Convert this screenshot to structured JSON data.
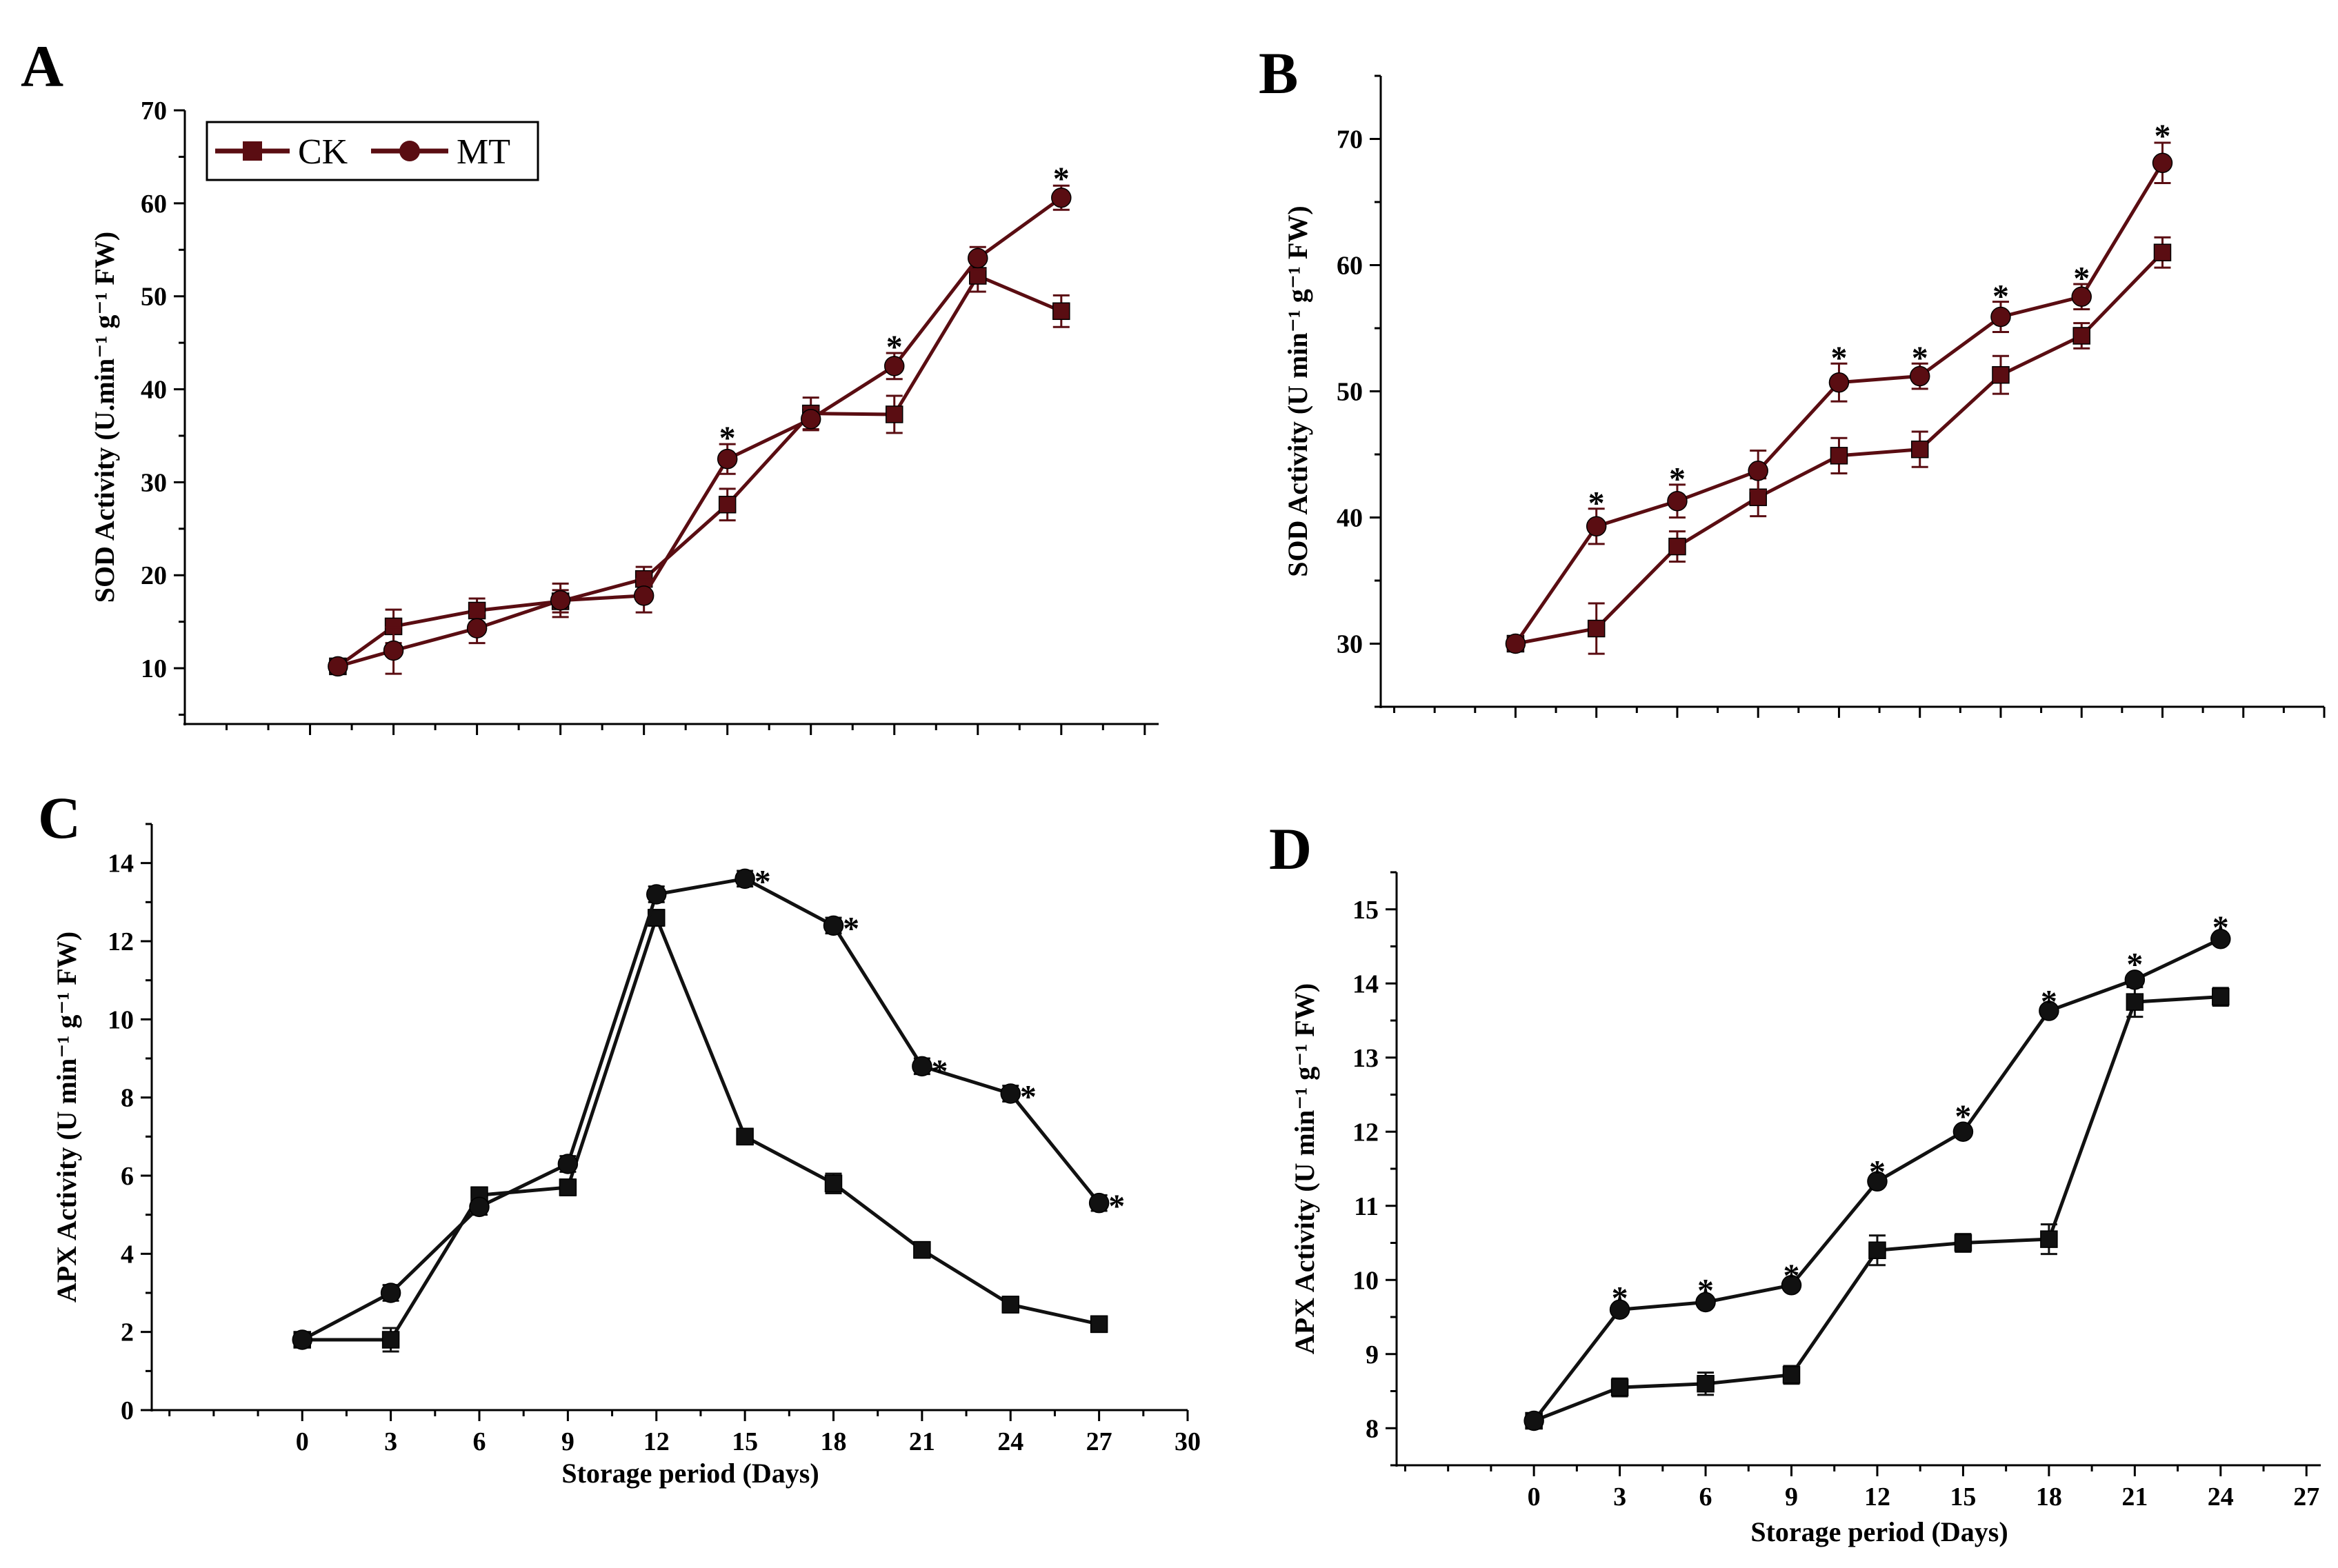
{
  "chart_data": [
    {
      "id": "A",
      "letter": "A",
      "type": "line",
      "title": "",
      "xlabel": "",
      "ylabel": "SOD Activity (U.min⁻¹ g⁻¹ FW)",
      "ylim": [
        4,
        70
      ],
      "yticks": [
        10,
        20,
        30,
        40,
        50,
        60,
        70
      ],
      "xlim": [
        -4.5,
        30.5
      ],
      "xticks": [
        0,
        3,
        6,
        9,
        12,
        15,
        18,
        21,
        24,
        27,
        30
      ],
      "xtick_labels_shown": false,
      "x": [
        1,
        3,
        6,
        9,
        12,
        15,
        18,
        21,
        24,
        27
      ],
      "legend": {
        "position": "top-left",
        "entries": [
          "CK",
          "MT"
        ]
      },
      "colors": {
        "CK": "#5a0d12",
        "MT": "#5a0d12"
      },
      "series": [
        {
          "name": "CK",
          "marker": "square",
          "values": [
            10.2,
            14.5,
            16.2,
            17.2,
            19.6,
            27.6,
            37.4,
            37.3,
            52.2,
            48.4
          ],
          "errors": [
            0.4,
            1.8,
            1.3,
            1.2,
            1.3,
            1.7,
            1.7,
            2.0,
            1.7,
            1.7
          ]
        },
        {
          "name": "MT",
          "marker": "circle",
          "values": [
            10.2,
            11.9,
            14.3,
            17.3,
            17.8,
            32.5,
            36.8,
            42.5,
            54.1,
            60.6
          ],
          "errors": [
            0.4,
            2.5,
            1.6,
            1.8,
            1.8,
            1.6,
            1.2,
            1.4,
            1.2,
            1.3
          ]
        }
      ],
      "annotations": [
        {
          "x": 15,
          "y": 35.5,
          "text": "*"
        },
        {
          "x": 21,
          "y": 45.3,
          "text": "*"
        },
        {
          "x": 27,
          "y": 63.4,
          "text": "*"
        }
      ]
    },
    {
      "id": "B",
      "letter": "B",
      "type": "line",
      "title": "",
      "xlabel": "",
      "ylabel": "SOD Activity (U min⁻¹ g⁻¹ FW)",
      "ylim": [
        25,
        75
      ],
      "yticks": [
        30,
        40,
        50,
        60,
        70
      ],
      "xlim": [
        -5,
        30
      ],
      "xticks": [
        0,
        3,
        6,
        9,
        12,
        15,
        18,
        21,
        24,
        27,
        30
      ],
      "xtick_labels_shown": false,
      "x": [
        0,
        3,
        6,
        9,
        12,
        15,
        18,
        21,
        24
      ],
      "legend": null,
      "colors": {
        "CK": "#5a0d12",
        "MT": "#5a0d12"
      },
      "series": [
        {
          "name": "CK",
          "marker": "square",
          "values": [
            30.0,
            31.2,
            37.7,
            41.6,
            44.9,
            45.4,
            51.3,
            54.4,
            61.0
          ],
          "errors": [
            0.5,
            2.0,
            1.2,
            1.5,
            1.4,
            1.4,
            1.5,
            1.0,
            1.2
          ]
        },
        {
          "name": "MT",
          "marker": "circle",
          "values": [
            30.0,
            39.3,
            41.3,
            43.7,
            50.7,
            51.2,
            55.9,
            57.5,
            68.1
          ],
          "errors": [
            0.5,
            1.4,
            1.3,
            1.6,
            1.5,
            1.0,
            1.2,
            1.0,
            1.6
          ]
        }
      ],
      "annotations": [
        {
          "x": 3,
          "y": 41.7,
          "text": "*"
        },
        {
          "x": 6,
          "y": 43.6,
          "text": "*"
        },
        {
          "x": 12,
          "y": 53.2,
          "text": "*"
        },
        {
          "x": 15,
          "y": 53.2,
          "text": "*"
        },
        {
          "x": 18,
          "y": 58.1,
          "text": "*"
        },
        {
          "x": 21,
          "y": 59.5,
          "text": "*"
        },
        {
          "x": 24,
          "y": 70.8,
          "text": "*"
        }
      ]
    },
    {
      "id": "C",
      "letter": "C",
      "type": "line",
      "title": "",
      "xlabel": "Storage period (Days)",
      "ylabel": "APX Activity (U min⁻¹ g⁻¹ FW)",
      "ylim": [
        0,
        15
      ],
      "yticks": [
        0,
        2,
        4,
        6,
        8,
        10,
        12,
        14
      ],
      "xlim": [
        -5.1,
        30
      ],
      "xticks": [
        0,
        3,
        6,
        9,
        12,
        15,
        18,
        21,
        24,
        27,
        30
      ],
      "xtick_labels_shown": true,
      "x": [
        0,
        3,
        6,
        9,
        12,
        15,
        18,
        21,
        24,
        27
      ],
      "legend": null,
      "colors": {
        "CK": "#111111",
        "MT": "#111111"
      },
      "series": [
        {
          "name": "CK",
          "marker": "square",
          "values": [
            1.8,
            1.8,
            5.5,
            5.7,
            12.6,
            7.0,
            5.8,
            4.1,
            2.7,
            2.2
          ],
          "errors": [
            0.1,
            0.3,
            0.2,
            0.2,
            0.2,
            0.2,
            0.25,
            0.2,
            0.2,
            0.2
          ]
        },
        {
          "name": "MT",
          "marker": "circle",
          "values": [
            1.8,
            3.0,
            5.2,
            6.3,
            13.2,
            13.6,
            12.4,
            8.8,
            8.1,
            5.3
          ],
          "errors": [
            0.1,
            0.2,
            0.2,
            0.2,
            0.2,
            0.2,
            0.2,
            0.2,
            0.2,
            0.2
          ]
        }
      ],
      "annotations": [
        {
          "x": 15.6,
          "y": 13.7,
          "text": "*"
        },
        {
          "x": 18.6,
          "y": 12.5,
          "text": "*"
        },
        {
          "x": 21.6,
          "y": 8.85,
          "text": "*"
        },
        {
          "x": 24.6,
          "y": 8.2,
          "text": "*"
        },
        {
          "x": 27.6,
          "y": 5.4,
          "text": "*"
        }
      ]
    },
    {
      "id": "D",
      "letter": "D",
      "type": "line",
      "title": "",
      "xlabel": "Storage period (Days)",
      "ylabel": "APX Activity (U min⁻¹ g⁻¹ FW)",
      "ylim": [
        7.5,
        15.5
      ],
      "yticks": [
        8,
        9,
        10,
        11,
        12,
        13,
        14,
        15
      ],
      "xlim": [
        -4.8,
        27.5
      ],
      "xticks": [
        0,
        3,
        6,
        9,
        12,
        15,
        18,
        21,
        24,
        27
      ],
      "xtick_labels_shown": true,
      "x": [
        0,
        3,
        6,
        9,
        12,
        15,
        18,
        21,
        24
      ],
      "legend": null,
      "colors": {
        "CK": "#111111",
        "MT": "#111111"
      },
      "series": [
        {
          "name": "CK",
          "marker": "square",
          "values": [
            8.1,
            8.55,
            8.6,
            8.72,
            10.4,
            10.5,
            10.55,
            13.75,
            13.82
          ],
          "errors": [
            0.05,
            0.12,
            0.15,
            0.12,
            0.2,
            0.12,
            0.2,
            0.2,
            0.12
          ]
        },
        {
          "name": "MT",
          "marker": "circle",
          "values": [
            8.1,
            9.6,
            9.7,
            9.93,
            11.33,
            12.0,
            13.63,
            14.05,
            14.6
          ]
        }
      ],
      "annotations": [
        {
          "x": 3,
          "y": 9.85,
          "text": "*"
        },
        {
          "x": 6,
          "y": 9.95,
          "text": "*"
        },
        {
          "x": 9,
          "y": 10.15,
          "text": "*"
        },
        {
          "x": 12,
          "y": 11.55,
          "text": "*"
        },
        {
          "x": 15,
          "y": 12.3,
          "text": "*"
        },
        {
          "x": 18,
          "y": 13.85,
          "text": "*"
        },
        {
          "x": 21,
          "y": 14.35,
          "text": "*"
        },
        {
          "x": 24,
          "y": 14.85,
          "text": "*"
        }
      ]
    }
  ]
}
